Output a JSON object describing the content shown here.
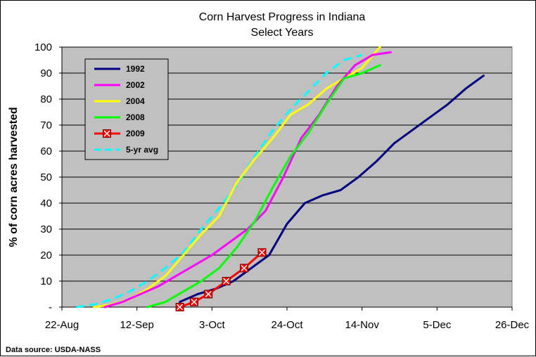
{
  "chart_data": {
    "type": "line",
    "title": "Corn Harvest Progress in Indiana",
    "subtitle": "Select Years",
    "xlabel": "",
    "ylabel": "% of corn acres harvested",
    "ylim": [
      0,
      100
    ],
    "yticks": [
      "-",
      "10",
      "20",
      "30",
      "40",
      "50",
      "60",
      "70",
      "80",
      "90",
      "100"
    ],
    "xlim": [
      "2009-08-22",
      "2009-12-26"
    ],
    "xticks": [
      "22-Aug",
      "12-Sep",
      "3-Oct",
      "24-Oct",
      "14-Nov",
      "5-Dec",
      "26-Dec"
    ],
    "grid": true,
    "legend_position": "top-left",
    "source": "Data source: USDA-NASS",
    "series": [
      {
        "name": "1992",
        "color": "#000080",
        "marker": "none",
        "dash": "solid",
        "points": [
          [
            "2009-09-24",
            2
          ],
          [
            "2009-09-29",
            5
          ],
          [
            "2009-10-04",
            7
          ],
          [
            "2009-10-09",
            10
          ],
          [
            "2009-10-14",
            15
          ],
          [
            "2009-10-19",
            20
          ],
          [
            "2009-10-24",
            32
          ],
          [
            "2009-10-29",
            40
          ],
          [
            "2009-11-03",
            43
          ],
          [
            "2009-11-08",
            45
          ],
          [
            "2009-11-13",
            50
          ],
          [
            "2009-11-18",
            56
          ],
          [
            "2009-11-23",
            63
          ],
          [
            "2009-11-28",
            68
          ],
          [
            "2009-12-03",
            73
          ],
          [
            "2009-12-08",
            78
          ],
          [
            "2009-12-13",
            84
          ],
          [
            "2009-12-18",
            89
          ]
        ]
      },
      {
        "name": "2002",
        "color": "#FF00FF",
        "marker": "none",
        "dash": "solid",
        "points": [
          [
            "2009-09-03",
            0
          ],
          [
            "2009-09-08",
            2
          ],
          [
            "2009-09-13",
            5
          ],
          [
            "2009-09-18",
            8
          ],
          [
            "2009-09-23",
            12
          ],
          [
            "2009-09-28",
            16
          ],
          [
            "2009-10-03",
            20
          ],
          [
            "2009-10-08",
            25
          ],
          [
            "2009-10-13",
            30
          ],
          [
            "2009-10-18",
            37
          ],
          [
            "2009-10-23",
            50
          ],
          [
            "2009-10-28",
            65
          ],
          [
            "2009-11-02",
            74
          ],
          [
            "2009-11-07",
            85
          ],
          [
            "2009-11-12",
            93
          ],
          [
            "2009-11-17",
            97
          ],
          [
            "2009-11-22",
            98
          ]
        ]
      },
      {
        "name": "2004",
        "color": "#FFFF00",
        "marker": "none",
        "dash": "solid",
        "points": [
          [
            "2009-08-31",
            0
          ],
          [
            "2009-09-05",
            1
          ],
          [
            "2009-09-10",
            3
          ],
          [
            "2009-09-15",
            7
          ],
          [
            "2009-09-20",
            12
          ],
          [
            "2009-09-25",
            20
          ],
          [
            "2009-09-30",
            28
          ],
          [
            "2009-10-05",
            35
          ],
          [
            "2009-10-10",
            48
          ],
          [
            "2009-10-15",
            57
          ],
          [
            "2009-10-20",
            65
          ],
          [
            "2009-10-25",
            74
          ],
          [
            "2009-10-30",
            78
          ],
          [
            "2009-11-04",
            84
          ],
          [
            "2009-11-09",
            88
          ],
          [
            "2009-11-14",
            92
          ],
          [
            "2009-11-19",
            100
          ]
        ]
      },
      {
        "name": "2008",
        "color": "#00FF00",
        "marker": "none",
        "dash": "solid",
        "points": [
          [
            "2009-09-15",
            0
          ],
          [
            "2009-09-20",
            2
          ],
          [
            "2009-09-25",
            6
          ],
          [
            "2009-09-30",
            10
          ],
          [
            "2009-10-05",
            15
          ],
          [
            "2009-10-10",
            23
          ],
          [
            "2009-10-15",
            33
          ],
          [
            "2009-10-20",
            46
          ],
          [
            "2009-10-25",
            58
          ],
          [
            "2009-10-30",
            67
          ],
          [
            "2009-11-04",
            78
          ],
          [
            "2009-11-09",
            88
          ],
          [
            "2009-11-14",
            90
          ],
          [
            "2009-11-19",
            93
          ]
        ]
      },
      {
        "name": "2009",
        "color": "#FF0000",
        "marker": "box-x",
        "dash": "solid",
        "points": [
          [
            "2009-09-24",
            0
          ],
          [
            "2009-09-28",
            2
          ],
          [
            "2009-10-02",
            5
          ],
          [
            "2009-10-07",
            10
          ],
          [
            "2009-10-12",
            15
          ],
          [
            "2009-10-17",
            21
          ]
        ]
      },
      {
        "name": "5-yr avg",
        "color": "#00FFFF",
        "marker": "none",
        "dash": "dashed",
        "points": [
          [
            "2009-08-26",
            0
          ],
          [
            "2009-08-31",
            1
          ],
          [
            "2009-09-05",
            3
          ],
          [
            "2009-09-10",
            6
          ],
          [
            "2009-09-15",
            10
          ],
          [
            "2009-09-20",
            15
          ],
          [
            "2009-09-25",
            21
          ],
          [
            "2009-09-30",
            30
          ],
          [
            "2009-10-05",
            38
          ],
          [
            "2009-10-10",
            47
          ],
          [
            "2009-10-15",
            58
          ],
          [
            "2009-10-20",
            68
          ],
          [
            "2009-10-25",
            76
          ],
          [
            "2009-10-30",
            83
          ],
          [
            "2009-11-04",
            90
          ],
          [
            "2009-11-09",
            95
          ],
          [
            "2009-11-14",
            97
          ]
        ]
      }
    ]
  }
}
